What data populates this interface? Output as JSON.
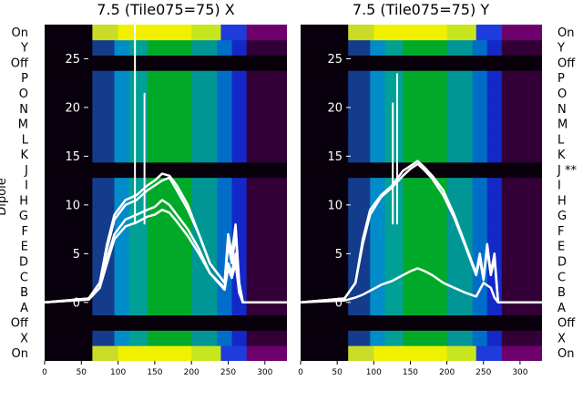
{
  "chart_data": [
    {
      "type": "heatmap",
      "title": "7.5 (Tile075=75) X",
      "ylabel": "Dipole",
      "xlim": [
        0,
        330
      ],
      "xticks": [
        0,
        50,
        100,
        150,
        200,
        250,
        300
      ],
      "overlay_yticks": [
        0,
        5,
        10,
        15,
        20,
        25
      ],
      "overlay_ylim": [
        -6,
        28.5
      ],
      "row_labels": [
        "On",
        "X",
        "Off",
        "A",
        "B",
        "C",
        "D",
        "E",
        "F",
        "G",
        "H",
        "I",
        "J",
        "K",
        "L",
        "M",
        "N",
        "O",
        "P",
        "Off",
        "Y",
        "On"
      ],
      "series": [
        {
          "name": "",
          "x": [
            0,
            60,
            75,
            85,
            95,
            110,
            125,
            140,
            150,
            160,
            170,
            180,
            195,
            210,
            225,
            245,
            250,
            255,
            260,
            265,
            270,
            300,
            330
          ],
          "y": [
            0,
            0.4,
            2,
            6,
            9,
            10.5,
            11,
            12,
            12.5,
            13.2,
            13,
            12,
            10,
            7,
            4,
            2,
            7,
            5,
            8,
            2,
            0,
            0,
            0
          ]
        },
        {
          "name": "",
          "x": [
            0,
            60,
            75,
            85,
            95,
            110,
            125,
            140,
            150,
            160,
            170,
            180,
            195,
            210,
            225,
            245,
            250,
            255,
            260,
            265,
            270,
            300,
            330
          ],
          "y": [
            0,
            0.4,
            2,
            5.5,
            8.5,
            10,
            10.5,
            11.5,
            12,
            12.5,
            12.8,
            11.5,
            9.5,
            7,
            4,
            2,
            6,
            4,
            7,
            2,
            0,
            0,
            0
          ]
        },
        {
          "name": "",
          "x": [
            0,
            60,
            75,
            85,
            95,
            110,
            125,
            140,
            150,
            160,
            170,
            180,
            195,
            210,
            225,
            245,
            250,
            255,
            260,
            265,
            270,
            300,
            330
          ],
          "y": [
            0,
            0.3,
            1.5,
            4.5,
            7,
            8.5,
            9,
            9.5,
            9.8,
            10.5,
            10,
            9,
            7.5,
            5.5,
            3,
            1.5,
            4,
            3,
            5,
            1,
            0,
            0,
            0
          ]
        },
        {
          "name": "",
          "x": [
            0,
            60,
            75,
            85,
            95,
            110,
            125,
            140,
            150,
            160,
            170,
            180,
            195,
            210,
            225,
            245,
            250,
            255,
            260,
            265,
            270,
            300,
            330
          ],
          "y": [
            0,
            0.3,
            1.5,
            4,
            6.5,
            7.8,
            8.2,
            8.8,
            9,
            9.5,
            9.2,
            8.3,
            6.8,
            5,
            3,
            1.3,
            3.5,
            2.5,
            4,
            1,
            0,
            0,
            0
          ]
        }
      ],
      "spikes": [
        {
          "x": 123,
          "y": 28.5
        },
        {
          "x": 136,
          "y": 21.5
        }
      ]
    },
    {
      "type": "heatmap",
      "title": "7.5 (Tile075=75) Y",
      "xlim": [
        0,
        330
      ],
      "xticks": [
        0,
        50,
        100,
        150,
        200,
        250,
        300
      ],
      "overlay_yticks": [
        0,
        5,
        10,
        15,
        20,
        25
      ],
      "overlay_ylim": [
        -6,
        28.5
      ],
      "row_labels": [
        "On",
        "X",
        "Off",
        "A",
        "B",
        "C",
        "D",
        "E",
        "F",
        "G",
        "H",
        "I",
        "J **",
        "K",
        "L",
        "M",
        "N",
        "O",
        "P",
        "Off",
        "Y",
        "On"
      ],
      "series": [
        {
          "name": "",
          "x": [
            0,
            60,
            75,
            85,
            95,
            110,
            125,
            140,
            150,
            160,
            170,
            180,
            195,
            210,
            225,
            240,
            245,
            250,
            255,
            260,
            265,
            270,
            300,
            330
          ],
          "y": [
            0,
            0.4,
            2,
            6.5,
            9.5,
            11,
            12,
            13.5,
            14,
            14.5,
            13.8,
            13,
            11.5,
            9,
            6,
            3,
            5,
            2.5,
            6,
            3,
            5,
            0,
            0,
            0
          ]
        },
        {
          "name": "",
          "x": [
            0,
            60,
            75,
            85,
            95,
            110,
            125,
            140,
            150,
            160,
            170,
            180,
            195,
            210,
            225,
            240,
            245,
            250,
            255,
            260,
            265,
            270,
            300,
            330
          ],
          "y": [
            0,
            0.4,
            2,
            6,
            9,
            10.8,
            11.8,
            13,
            13.7,
            14.2,
            13.5,
            12.7,
            11,
            8.7,
            5.8,
            2.8,
            4.5,
            2.3,
            5.5,
            2.8,
            4.5,
            0,
            0,
            0
          ]
        },
        {
          "name": "",
          "x": [
            0,
            60,
            75,
            85,
            95,
            110,
            125,
            140,
            150,
            160,
            170,
            180,
            195,
            210,
            225,
            240,
            250,
            260,
            265,
            270,
            300,
            330
          ],
          "y": [
            0,
            0.2,
            0.5,
            0.8,
            1.2,
            1.8,
            2.2,
            2.8,
            3.2,
            3.5,
            3.2,
            2.8,
            2,
            1.5,
            1,
            0.6,
            2,
            1.5,
            0.5,
            0,
            0,
            0
          ]
        }
      ],
      "spikes": [
        {
          "x": 126,
          "y": 20.5
        },
        {
          "x": 132,
          "y": 23.5
        }
      ]
    }
  ]
}
